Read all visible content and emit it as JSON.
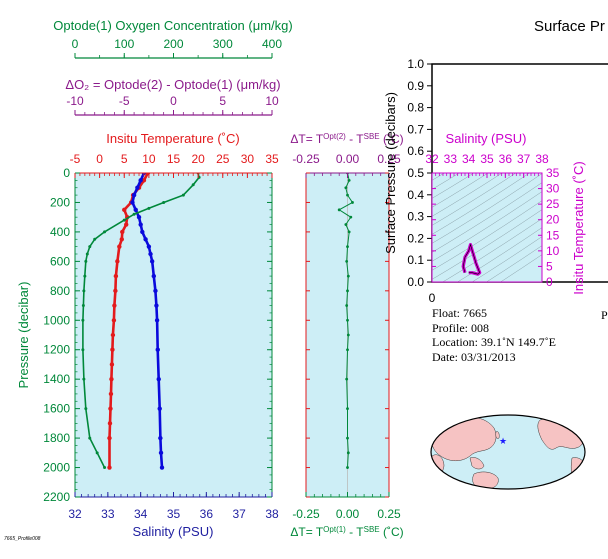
{
  "page_title": "Surface Pr",
  "footer_stamp": "7665_Profile008",
  "info": {
    "float": "Float:  7665",
    "profile": "Profile:  008",
    "location": "Location:  39.1˚N  149.7˚E",
    "date": "Date:  03/31/2013"
  },
  "colors": {
    "oxygen": "#00883a",
    "delta_o2": "#8b1a8b",
    "temperature": "#e31a1c",
    "salinity_profile": "#0a0adc",
    "salinity_axis": "#1f1fa0",
    "salinity_ts": "#cc00cc",
    "panel_bg": "#cdeef6",
    "land": "#f6c3c3"
  },
  "chart_data": [
    {
      "type": "line",
      "title": "",
      "axes": {
        "oxygen": {
          "label": "Optode(1) Oxygen Concentration (μm/kg)",
          "range": [
            0,
            400
          ],
          "ticks": [
            "0",
            "100",
            "200",
            "300",
            "400"
          ]
        },
        "delta_o2": {
          "label": "ΔO₂ = Optode(2) - Optode(1)     (μm/kg)",
          "range": [
            -10,
            10
          ],
          "ticks": [
            "-10",
            "-5",
            "0",
            "5",
            "10"
          ]
        },
        "temperature": {
          "label": "Insitu Temperature (˚C)",
          "range": [
            -5,
            35
          ],
          "ticks": [
            "-5",
            "0",
            "5",
            "10",
            "15",
            "20",
            "25",
            "30",
            "35"
          ]
        },
        "salinity": {
          "label": "Salinity (PSU)",
          "range": [
            32,
            38
          ],
          "ticks": [
            "32",
            "33",
            "34",
            "35",
            "36",
            "37",
            "38"
          ]
        },
        "pressure": {
          "label": "Pressure (decibar)",
          "range": [
            0,
            2200
          ],
          "ticks": [
            "0",
            "200",
            "400",
            "600",
            "800",
            "1000",
            "1200",
            "1400",
            "1600",
            "1800",
            "2000",
            "2200"
          ]
        }
      },
      "grid": false,
      "series": [
        {
          "name": "Temperature",
          "axis": "temperature",
          "color": "#e31a1c",
          "x": [
            9.8,
            9.0,
            8.0,
            6.8,
            6.4,
            5.0,
            5.6,
            5.4,
            4.6,
            4.5,
            4.0,
            3.6,
            3.3,
            3.2,
            3.0,
            2.9,
            2.7,
            2.6,
            2.5,
            2.4,
            2.3,
            2.2,
            2.1,
            2.0,
            2.0
          ],
          "y": [
            0,
            50,
            100,
            150,
            200,
            250,
            300,
            350,
            400,
            450,
            500,
            600,
            700,
            800,
            900,
            1000,
            1100,
            1200,
            1300,
            1400,
            1500,
            1600,
            1700,
            1800,
            2000
          ]
        },
        {
          "name": "Salinity",
          "axis": "salinity",
          "color": "#0a0adc",
          "x": [
            34.1,
            34.0,
            33.9,
            33.8,
            33.75,
            33.85,
            33.95,
            34.0,
            34.05,
            34.15,
            34.25,
            34.3,
            34.35,
            34.4,
            34.45,
            34.48,
            34.5,
            34.52,
            34.55,
            34.58,
            34.6,
            34.62,
            34.65
          ],
          "y": [
            0,
            50,
            100,
            150,
            200,
            250,
            300,
            350,
            400,
            450,
            500,
            550,
            600,
            700,
            800,
            900,
            1000,
            1200,
            1400,
            1600,
            1800,
            1900,
            2000
          ]
        },
        {
          "name": "Oxygen",
          "axis": "oxygen",
          "color": "#00883a",
          "x": [
            250,
            252,
            240,
            220,
            180,
            150,
            120,
            100,
            60,
            40,
            30,
            25,
            22,
            20,
            18,
            17,
            16,
            16,
            18,
            22,
            30,
            45,
            60
          ],
          "y": [
            0,
            30,
            80,
            150,
            200,
            240,
            280,
            320,
            400,
            450,
            500,
            550,
            600,
            700,
            800,
            900,
            1000,
            1200,
            1400,
            1600,
            1800,
            1900,
            2000
          ]
        }
      ]
    },
    {
      "type": "line",
      "title": "",
      "axes": {
        "top": {
          "label": "ΔT= T^Opt(2) - T^SBE (˚C)",
          "range": [
            -0.25,
            0.25
          ],
          "ticks": [
            "-0.25",
            "0.00",
            "0.25"
          ]
        },
        "bottom": {
          "label": "ΔT= T^Opt(1) - T^SBE (˚C)",
          "range": [
            -0.25,
            0.25
          ],
          "ticks": [
            "-0.25",
            "0.00",
            "0.25"
          ]
        }
      },
      "series": [
        {
          "name": "ΔT Optode(1)",
          "color": "#00883a",
          "x": [
            0.0,
            0.01,
            -0.01,
            0.0,
            0.03,
            -0.05,
            0.02,
            -0.01,
            0.01,
            0.0,
            -0.005,
            0.005,
            0.0,
            -0.005,
            0.0,
            0.005,
            0.0,
            -0.005,
            0.0,
            0.0,
            0.005,
            0.0
          ],
          "y": [
            0,
            50,
            100,
            150,
            200,
            250,
            300,
            350,
            400,
            500,
            600,
            700,
            800,
            900,
            1000,
            1100,
            1200,
            1400,
            1600,
            1800,
            1900,
            2000
          ]
        }
      ]
    },
    {
      "type": "scatter",
      "title": "",
      "axes": {
        "top": {
          "label": "Salinity (PSU)",
          "range": [
            32,
            38
          ],
          "ticks": [
            "32",
            "33",
            "34",
            "35",
            "36",
            "37",
            "38"
          ]
        },
        "right": {
          "label": "Insitu Temperature (˚C)",
          "range": [
            0,
            35
          ],
          "ticks": [
            "0",
            "5",
            "10",
            "15",
            "20",
            "25",
            "30",
            "35"
          ]
        }
      },
      "series": [
        {
          "name": "T-S",
          "color": "#cc00cc",
          "x": [
            33.8,
            33.7,
            33.8,
            34.0,
            34.1,
            34.2,
            34.3,
            34.4,
            34.6,
            34.5,
            34.2,
            34.0
          ],
          "y": [
            3.0,
            5.0,
            8.0,
            10.0,
            12.0,
            10.0,
            8.0,
            6.0,
            3.0,
            2.5,
            3.0,
            3.0
          ]
        }
      ]
    },
    {
      "type": "line",
      "title": "",
      "axes": {
        "y": {
          "label": "Surface Pressure (decibars)",
          "range": [
            0,
            1
          ],
          "ticks": [
            "0.0",
            "0.1",
            "0.2",
            "0.3",
            "0.4",
            "0.5",
            "0.6",
            "0.7",
            "0.8",
            "0.9",
            "1.0"
          ]
        },
        "x": {
          "label": "",
          "ticks": [
            "0"
          ]
        }
      },
      "x_label_partial": "P",
      "series": []
    }
  ]
}
